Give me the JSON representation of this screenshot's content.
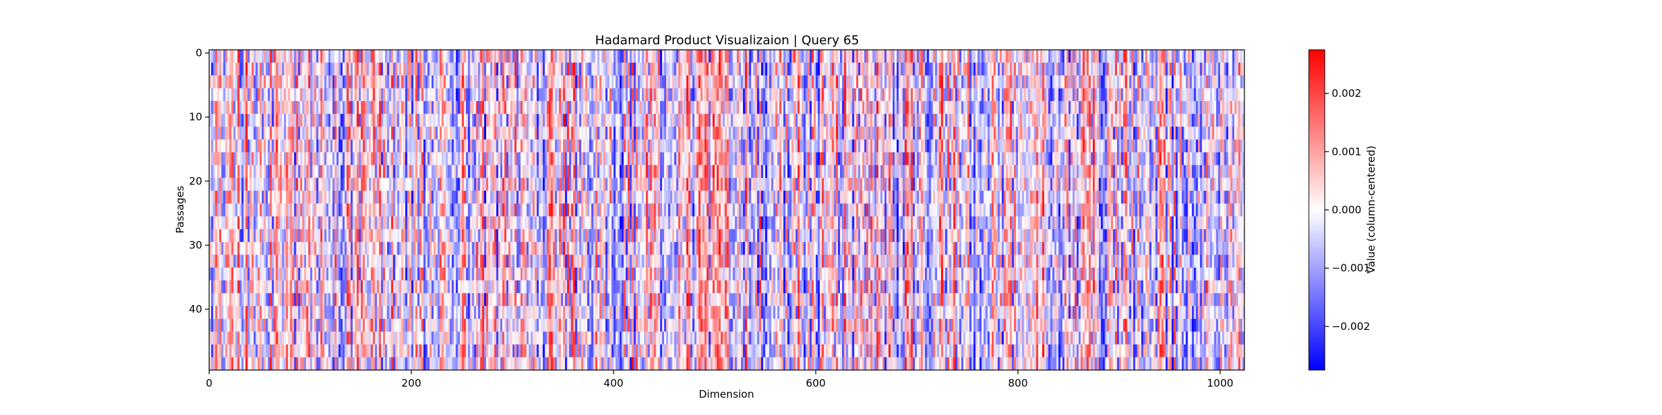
{
  "chart_data": {
    "type": "heatmap",
    "title": "Hadamard Product Visualizaion | Query 65",
    "xlabel": "Dimension",
    "ylabel": "Passages",
    "n_columns": 1024,
    "n_rows": 50,
    "xlim": [
      0,
      1024
    ],
    "ylim": [
      0,
      50
    ],
    "x_ticks": [
      0,
      200,
      400,
      600,
      800,
      1000
    ],
    "x_tick_labels": [
      "0",
      "200",
      "400",
      "600",
      "800",
      "1000"
    ],
    "y_ticks": [
      0,
      10,
      20,
      30,
      40
    ],
    "y_tick_labels": [
      "0",
      "10",
      "20",
      "30",
      "40"
    ],
    "colormap": "bwr",
    "colorbar": {
      "label": "Value (column-centered)",
      "vmin": -0.00275,
      "vmax": 0.00275,
      "ticks": [
        0.002,
        0.001,
        0.0,
        -0.001,
        -0.002
      ],
      "tick_labels": [
        "0.002",
        "0.001",
        "0.000",
        "−0.001",
        "−0.002"
      ]
    },
    "colors": {
      "negative": "#0000ff",
      "zero": "#ffffff",
      "positive": "#ff0000"
    },
    "values": "dense 50 x 1024 matrix of column-centered values (approx. -0.0027 to 0.0027); individual cell values are not legible in the image"
  }
}
